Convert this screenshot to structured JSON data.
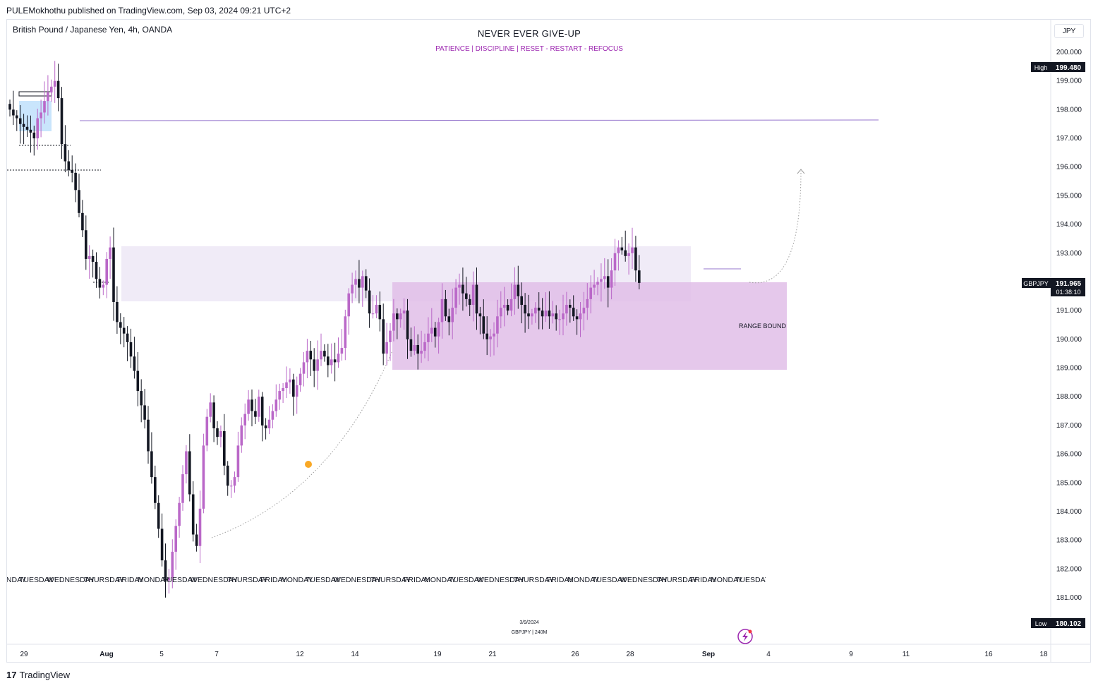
{
  "header": {
    "published": "PULEMokhothu published on TradingView.com, Sep 03, 2024 09:21 UTC+2",
    "symbol_desc": "British Pound / Japanese Yen, 4h, OANDA",
    "title": "NEVER EVER GIVE-UP",
    "subtitle": "PATIENCE   |   DISCIPLINE   |   RESET - RESTART - REFOCUS",
    "currency": "JPY"
  },
  "footer": {
    "brand": "TradingView",
    "logo_mark": "17"
  },
  "annotations": {
    "range_label": "RANGE BOUND",
    "watermark_date": "3/9/2024",
    "watermark_symbol": "GBPJPY  |  240M"
  },
  "badges": {
    "high_label": "High",
    "high_value": "199.480",
    "low_label": "Low",
    "low_value": "180.102",
    "symbol_tag": "GBPJPY",
    "last_price": "191.965",
    "countdown": "01:38:10"
  },
  "colors": {
    "bull": "#ba68c8",
    "bear": "#131722",
    "zone": "#e1bee7",
    "zone_upper": "#ede7f6"
  },
  "chart_data": {
    "type": "candlestick",
    "ylim": [
      180,
      200.5
    ],
    "y_ticks": [
      "200.000",
      "199.000",
      "198.000",
      "197.000",
      "196.000",
      "195.000",
      "194.000",
      "193.000",
      "192.000",
      "191.000",
      "190.000",
      "189.000",
      "188.000",
      "187.000",
      "186.000",
      "185.000",
      "184.000",
      "183.000",
      "182.000",
      "181.000"
    ],
    "x_ticks": [
      "29",
      "Aug",
      "5",
      "7",
      "12",
      "14",
      "19",
      "21",
      "26",
      "28",
      "Sep",
      "4",
      "9",
      "11",
      "16",
      "18"
    ],
    "day_labels": [
      "MONDAY",
      "TUESDAY",
      "WEDNESDAY",
      "THURSDAY",
      "FRIDAY",
      "MONDAY",
      "TUESDAY",
      "WEDNESDAY",
      "THURSDAY",
      "FRIDAY",
      "MONDAY",
      "TUESDAY",
      "WEDNESDAY",
      "THURSDAY",
      "FRIDAY",
      "MONDAY",
      "TUESDAY",
      "WEDNESDAY",
      "THURSDAY",
      "FRIDAY",
      "MONDAY",
      "TUESDAY",
      "WEDNESDAY",
      "THURSDAY",
      "FRIDAY",
      "MONDAY",
      "TUESDAY"
    ],
    "closes": [
      198.0,
      197.8,
      197.7,
      197.5,
      197.4,
      197.3,
      197.2,
      197.0,
      197.7,
      197.9,
      198.3,
      198.6,
      198.8,
      199.0,
      198.4,
      196.8,
      196.2,
      195.9,
      195.8,
      195.2,
      194.4,
      193.8,
      192.8,
      192.9,
      192.7,
      192.1,
      191.8,
      191.9,
      192.8,
      193.2,
      191.3,
      190.6,
      190.4,
      190.2,
      189.9,
      189.4,
      188.9,
      188.2,
      187.7,
      187.2,
      186.1,
      185.2,
      184.3,
      183.4,
      182.3,
      181.6,
      181.7,
      182.6,
      183.5,
      184.3,
      185.3,
      186.1,
      184.6,
      183.2,
      182.8,
      184.1,
      186.3,
      187.3,
      187.8,
      186.9,
      186.6,
      186.8,
      185.6,
      184.9,
      184.9,
      185.2,
      186.3,
      187.0,
      187.4,
      187.9,
      187.5,
      187.3,
      188.0,
      187.0,
      186.9,
      187.2,
      187.5,
      187.9,
      188.2,
      188.3,
      188.5,
      188.6,
      188.0,
      188.4,
      188.8,
      189.2,
      189.6,
      189.3,
      188.9,
      189.3,
      189.6,
      189.4,
      189.1,
      189.3,
      189.2,
      189.5,
      189.7,
      190.8,
      191.6,
      191.9,
      192.1,
      191.8,
      192.2,
      191.7,
      190.9,
      190.9,
      191.2,
      190.7,
      189.5,
      189.9,
      190.3,
      190.9,
      190.7,
      190.9,
      191.0,
      190.0,
      189.6,
      189.8,
      189.5,
      189.6,
      189.9,
      190.2,
      190.4,
      190.1,
      190.6,
      191.4,
      190.8,
      190.6,
      191.1,
      191.8,
      191.9,
      191.6,
      191.4,
      191.2,
      191.9,
      190.9,
      190.8,
      190.2,
      190.0,
      190.1,
      190.2,
      190.8,
      191.1,
      191.2,
      191.0,
      191.4,
      191.9,
      191.5,
      191.2,
      190.9,
      190.8,
      190.9,
      191.1,
      191.0,
      190.8,
      191.0,
      190.8,
      190.9,
      190.7,
      190.7,
      190.9,
      191.2,
      191.1,
      190.8,
      190.7,
      190.9,
      191.1,
      191.4,
      191.8,
      191.9,
      192.0,
      192.1,
      192.2,
      191.8,
      192.4,
      193.0,
      193.2,
      193.1,
      192.9,
      193.0,
      193.2,
      192.4,
      191.965
    ]
  }
}
